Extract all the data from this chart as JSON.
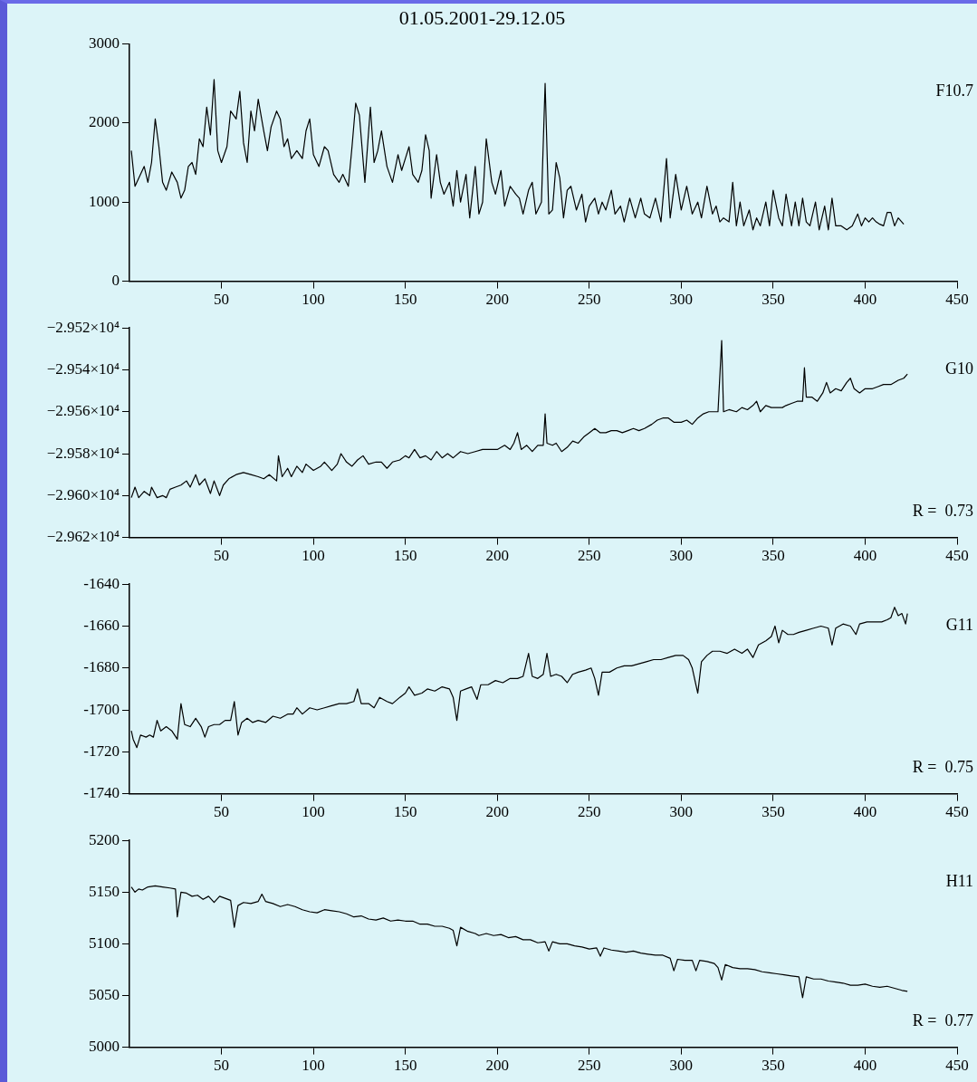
{
  "chart_data": [
    {
      "type": "line",
      "title": "01.05.2001-29.12.05",
      "annotations": [
        "F10.7"
      ],
      "xlim": [
        0,
        450
      ],
      "xticks": [
        50,
        100,
        150,
        200,
        250,
        300,
        350,
        400,
        450
      ],
      "ylim": [
        0,
        3000
      ],
      "yticks": [
        0,
        1000,
        2000,
        3000
      ],
      "marker": "none",
      "line_style": "solid",
      "series": [
        {
          "color": "#000000",
          "x": [
            1,
            3,
            6,
            8,
            10,
            12,
            14,
            16,
            18,
            20,
            23,
            26,
            28,
            30,
            32,
            34,
            36,
            38,
            40,
            42,
            44,
            46,
            48,
            50,
            53,
            55,
            58,
            60,
            62,
            64,
            66,
            68,
            70,
            73,
            75,
            77,
            80,
            82,
            84,
            86,
            88,
            91,
            94,
            96,
            98,
            100,
            103,
            106,
            108,
            111,
            114,
            116,
            119,
            121,
            123,
            125,
            128,
            131,
            133,
            135,
            137,
            140,
            143,
            146,
            148,
            150,
            152,
            154,
            157,
            159,
            161,
            163,
            164,
            167,
            169,
            171,
            174,
            176,
            178,
            180,
            183,
            185,
            188,
            190,
            192,
            194,
            197,
            199,
            202,
            204,
            207,
            210,
            212,
            214,
            217,
            219,
            221,
            224,
            226,
            228,
            230,
            232,
            234,
            236,
            238,
            240,
            243,
            246,
            248,
            250,
            253,
            255,
            257,
            259,
            262,
            264,
            267,
            269,
            272,
            275,
            278,
            280,
            283,
            286,
            289,
            292,
            294,
            297,
            300,
            303,
            306,
            309,
            311,
            314,
            317,
            319,
            321,
            323,
            326,
            328,
            330,
            332,
            334,
            337,
            339,
            341,
            343,
            346,
            348,
            350,
            353,
            355,
            357,
            360,
            362,
            364,
            366,
            368,
            370,
            373,
            375,
            378,
            380,
            382,
            384,
            387,
            390,
            393,
            396,
            398,
            400,
            402,
            404,
            406,
            408,
            410,
            412,
            414,
            416,
            418,
            421
          ],
          "values": [
            1650,
            1200,
            1350,
            1450,
            1250,
            1500,
            2050,
            1700,
            1250,
            1150,
            1380,
            1250,
            1050,
            1150,
            1450,
            1500,
            1350,
            1800,
            1700,
            2200,
            1850,
            2550,
            1650,
            1500,
            1700,
            2150,
            2050,
            2400,
            1750,
            1500,
            2150,
            1900,
            2300,
            1900,
            1650,
            1950,
            2150,
            2050,
            1700,
            1800,
            1550,
            1650,
            1550,
            1900,
            2050,
            1600,
            1450,
            1700,
            1650,
            1350,
            1250,
            1350,
            1200,
            1700,
            2250,
            2100,
            1250,
            2200,
            1500,
            1650,
            1900,
            1450,
            1250,
            1600,
            1400,
            1550,
            1700,
            1350,
            1250,
            1400,
            1850,
            1650,
            1050,
            1600,
            1250,
            1100,
            1250,
            950,
            1400,
            1000,
            1350,
            800,
            1450,
            850,
            1000,
            1800,
            1250,
            1100,
            1400,
            950,
            1200,
            1100,
            1050,
            850,
            1150,
            1250,
            850,
            1000,
            2500,
            850,
            900,
            1500,
            1300,
            800,
            1150,
            1200,
            900,
            1100,
            750,
            950,
            1050,
            850,
            1000,
            900,
            1150,
            850,
            950,
            750,
            1050,
            800,
            1050,
            850,
            800,
            1050,
            750,
            1550,
            800,
            1350,
            900,
            1200,
            850,
            1000,
            800,
            1200,
            850,
            950,
            750,
            800,
            750,
            1250,
            700,
            1000,
            700,
            900,
            650,
            800,
            700,
            1000,
            700,
            1150,
            800,
            700,
            1100,
            700,
            1000,
            700,
            1050,
            750,
            700,
            1000,
            650,
            950,
            650,
            1050,
            700,
            700,
            650,
            700,
            850,
            700,
            800,
            750,
            800,
            750,
            720,
            700,
            870,
            870,
            700,
            800,
            720
          ]
        }
      ]
    },
    {
      "type": "line",
      "annotations": [
        "G10",
        "R =  0.73"
      ],
      "xlim": [
        0,
        450
      ],
      "xticks": [
        50,
        100,
        150,
        200,
        250,
        300,
        350,
        400,
        450
      ],
      "ylim": [
        -29620,
        -29520
      ],
      "yticks": [
        {
          "value": -29620,
          "label": "−2.962×10⁴"
        },
        {
          "value": -29600,
          "label": "−2.960×10⁴"
        },
        {
          "value": -29580,
          "label": "−2.958×10⁴"
        },
        {
          "value": -29560,
          "label": "−2.956×10⁴"
        },
        {
          "value": -29540,
          "label": "−2.954×10⁴"
        },
        {
          "value": -29520,
          "label": "−2.952×10⁴"
        }
      ],
      "marker": "none",
      "line_style": "solid",
      "series": [
        {
          "color": "#000000",
          "x": [
            1,
            3,
            5,
            8,
            11,
            12,
            15,
            18,
            20,
            22,
            25,
            28,
            31,
            33,
            36,
            38,
            41,
            44,
            46,
            49,
            51,
            54,
            58,
            62,
            66,
            70,
            73,
            76,
            80,
            81,
            83,
            86,
            88,
            91,
            94,
            96,
            100,
            104,
            106,
            110,
            113,
            115,
            118,
            121,
            124,
            127,
            130,
            134,
            137,
            140,
            143,
            147,
            150,
            152,
            155,
            158,
            161,
            164,
            167,
            170,
            173,
            176,
            180,
            184,
            188,
            192,
            196,
            200,
            204,
            207,
            209,
            211,
            213,
            216,
            219,
            222,
            225,
            226,
            227,
            230,
            232,
            235,
            238,
            241,
            244,
            247,
            250,
            253,
            256,
            259,
            262,
            265,
            268,
            271,
            274,
            277,
            280,
            284,
            287,
            290,
            293,
            296,
            300,
            303,
            306,
            309,
            312,
            315,
            318,
            320,
            322,
            323,
            326,
            330,
            333,
            336,
            339,
            341,
            343,
            346,
            349,
            352,
            355,
            357,
            360,
            363,
            366,
            367,
            368,
            371,
            374,
            377,
            379,
            381,
            384,
            387,
            390,
            392,
            394,
            397,
            400,
            404,
            407,
            410,
            414,
            418,
            421,
            423
          ],
          "values": [
            -29601,
            -29596,
            -29601,
            -29598,
            -29600,
            -29596,
            -29601,
            -29600,
            -29601,
            -29597,
            -29596,
            -29595,
            -29593,
            -29596,
            -29590,
            -29595,
            -29592,
            -29599,
            -29593,
            -29600,
            -29595,
            -29592,
            -29590,
            -29589,
            -29590,
            -29591,
            -29592,
            -29590,
            -29593,
            -29581,
            -29591,
            -29587,
            -29591,
            -29586,
            -29589,
            -29585,
            -29588,
            -29586,
            -29584,
            -29588,
            -29585,
            -29580,
            -29584,
            -29586,
            -29583,
            -29581,
            -29585,
            -29584,
            -29584,
            -29587,
            -29584,
            -29583,
            -29581,
            -29582,
            -29578,
            -29582,
            -29581,
            -29583,
            -29579,
            -29582,
            -29580,
            -29582,
            -29579,
            -29580,
            -29579,
            -29578,
            -29578,
            -29578,
            -29576,
            -29578,
            -29575,
            -29570,
            -29578,
            -29576,
            -29579,
            -29576,
            -29576,
            -29561,
            -29575,
            -29576,
            -29575,
            -29579,
            -29577,
            -29574,
            -29575,
            -29572,
            -29570,
            -29568,
            -29570,
            -29570,
            -29569,
            -29569,
            -29570,
            -29569,
            -29568,
            -29569,
            -29568,
            -29566,
            -29564,
            -29563,
            -29563,
            -29565,
            -29565,
            -29564,
            -29566,
            -29563,
            -29561,
            -29560,
            -29560,
            -29560,
            -29526,
            -29560,
            -29559,
            -29560,
            -29558,
            -29559,
            -29557,
            -29555,
            -29560,
            -29557,
            -29558,
            -29558,
            -29558,
            -29557,
            -29556,
            -29555,
            -29555,
            -29539,
            -29553,
            -29553,
            -29555,
            -29551,
            -29546,
            -29551,
            -29549,
            -29550,
            -29546,
            -29544,
            -29549,
            -29551,
            -29549,
            -29549,
            -29548,
            -29547,
            -29547,
            -29545,
            -29544,
            -29542
          ]
        }
      ]
    },
    {
      "type": "line",
      "annotations": [
        "G11",
        "R =  0.75"
      ],
      "xlim": [
        0,
        450
      ],
      "xticks": [
        50,
        100,
        150,
        200,
        250,
        300,
        350,
        400,
        450
      ],
      "ylim": [
        -1740,
        -1640
      ],
      "yticks": [
        -1740,
        -1720,
        -1700,
        -1680,
        -1660,
        -1640
      ],
      "marker": "none",
      "line_style": "solid",
      "series": [
        {
          "color": "#000000",
          "x": [
            1,
            2,
            4,
            6,
            9,
            11,
            13,
            15,
            17,
            20,
            23,
            26,
            28,
            30,
            33,
            36,
            39,
            41,
            43,
            46,
            49,
            52,
            55,
            57,
            59,
            61,
            64,
            67,
            70,
            74,
            78,
            82,
            86,
            89,
            91,
            94,
            98,
            102,
            106,
            110,
            114,
            118,
            122,
            124,
            126,
            130,
            133,
            136,
            140,
            143,
            147,
            150,
            152,
            155,
            159,
            162,
            166,
            170,
            174,
            176,
            178,
            180,
            183,
            186,
            189,
            191,
            195,
            199,
            203,
            207,
            211,
            214,
            217,
            219,
            222,
            225,
            227,
            229,
            232,
            235,
            238,
            241,
            244,
            248,
            251,
            253,
            255,
            257,
            261,
            265,
            269,
            273,
            277,
            281,
            285,
            289,
            293,
            297,
            301,
            304,
            306,
            308,
            309,
            311,
            314,
            317,
            321,
            325,
            329,
            333,
            336,
            339,
            342,
            346,
            349,
            351,
            353,
            355,
            358,
            361,
            364,
            368,
            372,
            376,
            380,
            382,
            384,
            388,
            392,
            395,
            397,
            401,
            405,
            409,
            412,
            414,
            416,
            418,
            420,
            422,
            423
          ],
          "values": [
            -1710,
            -1714,
            -1718,
            -1712,
            -1713,
            -1712,
            -1713,
            -1705,
            -1710,
            -1708,
            -1710,
            -1714,
            -1697,
            -1707,
            -1708,
            -1704,
            -1708,
            -1713,
            -1708,
            -1707,
            -1707,
            -1705,
            -1705,
            -1696,
            -1712,
            -1706,
            -1704,
            -1706,
            -1705,
            -1706,
            -1703,
            -1704,
            -1702,
            -1702,
            -1699,
            -1702,
            -1699,
            -1700,
            -1699,
            -1698,
            -1697,
            -1697,
            -1696,
            -1690,
            -1697,
            -1697,
            -1699,
            -1694,
            -1696,
            -1697,
            -1694,
            -1692,
            -1689,
            -1693,
            -1692,
            -1690,
            -1691,
            -1689,
            -1690,
            -1694,
            -1705,
            -1691,
            -1690,
            -1689,
            -1695,
            -1688,
            -1688,
            -1686,
            -1687,
            -1685,
            -1685,
            -1684,
            -1673,
            -1684,
            -1685,
            -1683,
            -1673,
            -1684,
            -1683,
            -1684,
            -1687,
            -1683,
            -1682,
            -1681,
            -1680,
            -1685,
            -1693,
            -1682,
            -1682,
            -1680,
            -1679,
            -1679,
            -1678,
            -1677,
            -1676,
            -1676,
            -1675,
            -1674,
            -1674,
            -1676,
            -1680,
            -1688,
            -1692,
            -1677,
            -1674,
            -1672,
            -1672,
            -1673,
            -1671,
            -1673,
            -1671,
            -1675,
            -1669,
            -1667,
            -1665,
            -1660,
            -1668,
            -1662,
            -1664,
            -1664,
            -1663,
            -1662,
            -1661,
            -1660,
            -1661,
            -1669,
            -1661,
            -1659,
            -1660,
            -1664,
            -1659,
            -1658,
            -1658,
            -1658,
            -1657,
            -1656,
            -1651,
            -1655,
            -1654,
            -1659,
            -1654
          ]
        }
      ]
    },
    {
      "type": "line",
      "annotations": [
        "H11",
        "R =  0.77"
      ],
      "xlim": [
        0,
        450
      ],
      "xticks": [
        50,
        100,
        150,
        200,
        250,
        300,
        350,
        400,
        450
      ],
      "ylim": [
        5000,
        5200
      ],
      "yticks": [
        5000,
        5050,
        5100,
        5150,
        5200
      ],
      "marker": "none",
      "line_style": "solid",
      "series": [
        {
          "color": "#000000",
          "x": [
            1,
            3,
            5,
            7,
            10,
            14,
            18,
            22,
            25,
            26,
            28,
            31,
            34,
            37,
            40,
            43,
            46,
            49,
            52,
            55,
            57,
            59,
            62,
            66,
            70,
            72,
            74,
            78,
            82,
            86,
            90,
            94,
            98,
            102,
            106,
            110,
            114,
            118,
            122,
            126,
            130,
            134,
            138,
            142,
            146,
            150,
            154,
            158,
            162,
            166,
            170,
            174,
            176,
            178,
            180,
            184,
            188,
            190,
            194,
            198,
            202,
            206,
            210,
            214,
            218,
            222,
            226,
            228,
            230,
            234,
            238,
            242,
            246,
            250,
            254,
            256,
            258,
            262,
            266,
            270,
            274,
            278,
            282,
            286,
            290,
            294,
            296,
            298,
            302,
            306,
            308,
            310,
            314,
            318,
            320,
            322,
            324,
            328,
            332,
            336,
            340,
            344,
            348,
            352,
            356,
            360,
            364,
            366,
            368,
            372,
            376,
            380,
            384,
            388,
            392,
            396,
            400,
            404,
            408,
            412,
            416,
            420,
            423
          ],
          "values": [
            5155,
            5150,
            5153,
            5152,
            5155,
            5156,
            5155,
            5154,
            5153,
            5126,
            5150,
            5149,
            5146,
            5147,
            5143,
            5146,
            5140,
            5146,
            5144,
            5142,
            5116,
            5137,
            5140,
            5139,
            5141,
            5148,
            5141,
            5139,
            5136,
            5138,
            5136,
            5133,
            5131,
            5130,
            5133,
            5132,
            5131,
            5129,
            5126,
            5127,
            5124,
            5123,
            5125,
            5122,
            5123,
            5122,
            5122,
            5119,
            5119,
            5117,
            5117,
            5115,
            5113,
            5098,
            5116,
            5112,
            5110,
            5108,
            5110,
            5108,
            5109,
            5106,
            5107,
            5104,
            5104,
            5101,
            5102,
            5093,
            5102,
            5100,
            5100,
            5098,
            5097,
            5095,
            5096,
            5088,
            5096,
            5094,
            5093,
            5092,
            5093,
            5091,
            5090,
            5089,
            5089,
            5086,
            5074,
            5085,
            5084,
            5084,
            5074,
            5084,
            5083,
            5081,
            5077,
            5065,
            5080,
            5077,
            5076,
            5076,
            5075,
            5073,
            5072,
            5071,
            5070,
            5069,
            5068,
            5048,
            5068,
            5066,
            5066,
            5064,
            5063,
            5062,
            5060,
            5060,
            5061,
            5059,
            5058,
            5059,
            5057,
            5055,
            5054
          ]
        }
      ]
    }
  ]
}
